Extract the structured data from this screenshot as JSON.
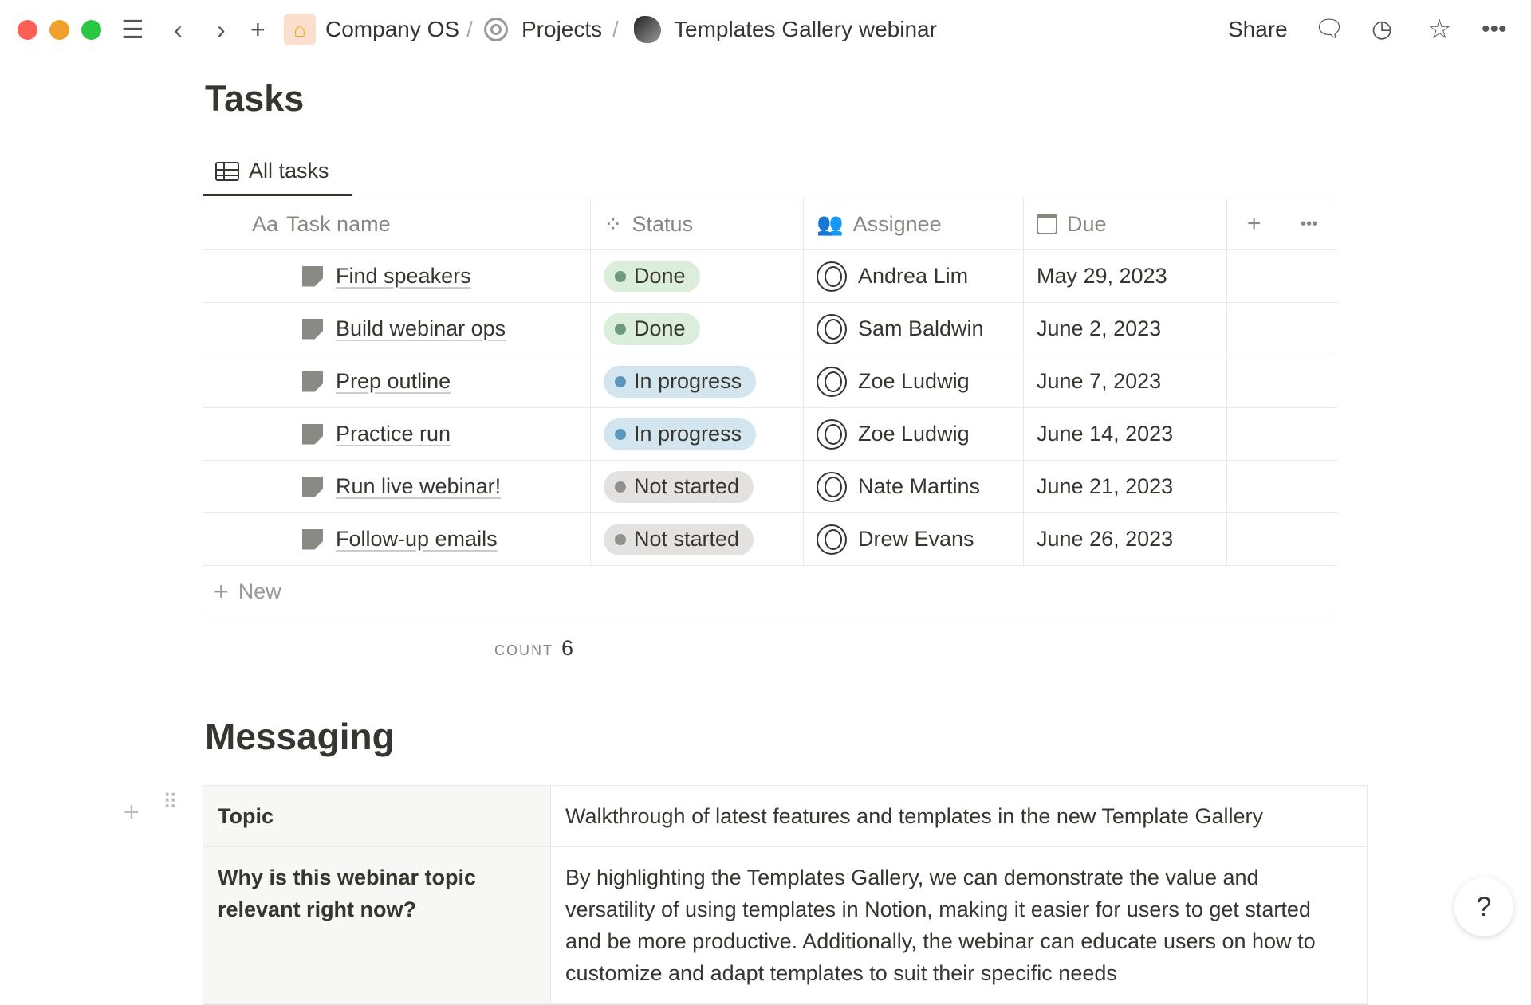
{
  "topbar": {
    "breadcrumbs": [
      "Company OS",
      "Projects",
      "Templates Gallery webinar"
    ],
    "share": "Share",
    "colors": {
      "close": "#fe5f57",
      "minimize": "#f0a12c",
      "maximize": "#29c840"
    }
  },
  "tasks": {
    "title": "Tasks",
    "view_tab": "All tasks",
    "columns": {
      "name": "Task name",
      "name_prefix": "Aa",
      "status": "Status",
      "assignee": "Assignee",
      "due": "Due"
    },
    "rows": [
      {
        "name": "Find speakers",
        "status": "Done",
        "assignee": "Andrea Lim",
        "due": "May 29, 2023"
      },
      {
        "name": "Build webinar ops",
        "status": "Done",
        "assignee": "Sam Baldwin",
        "due": "June 2, 2023"
      },
      {
        "name": "Prep outline",
        "status": "In progress",
        "assignee": "Zoe Ludwig",
        "due": "June 7, 2023"
      },
      {
        "name": "Practice run",
        "status": "In progress",
        "assignee": "Zoe Ludwig",
        "due": "June 14, 2023"
      },
      {
        "name": "Run live webinar!",
        "status": "Not started",
        "assignee": "Nate Martins",
        "due": "June 21, 2023"
      },
      {
        "name": "Follow-up emails",
        "status": "Not started",
        "assignee": "Drew Evans",
        "due": "June 26, 2023"
      }
    ],
    "new_label": "New",
    "count_label": "COUNT",
    "count": "6",
    "status_colors": {
      "Done": {
        "bg": "#dbeddb",
        "dot": "#6c9b7d"
      },
      "In progress": {
        "bg": "#d3e5ef",
        "dot": "#5b97bd"
      },
      "Not started": {
        "bg": "#e3e2e0",
        "dot": "#91918e"
      }
    }
  },
  "messaging": {
    "title": "Messaging",
    "rows": [
      {
        "key": "Topic",
        "value": "Walkthrough of latest features and templates in the new Template Gallery"
      },
      {
        "key": "Why is this webinar topic relevant right now?",
        "value": "By highlighting the Templates Gallery, we can demonstrate the value and versatility of using templates in Notion, making it easier for users to get started and be more productive. Additionally, the webinar can educate users on how to customize and adapt templates to suit their specific needs"
      }
    ]
  },
  "help": "?"
}
